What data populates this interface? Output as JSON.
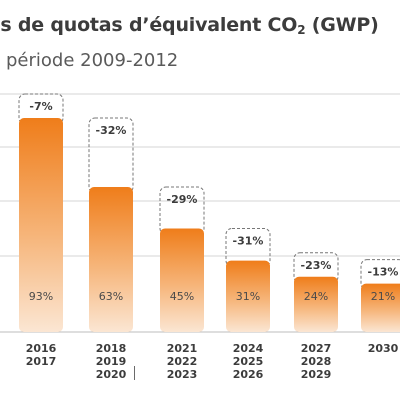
{
  "title_text": "ls de quotas d’équivalent CO",
  "title_sub": "2",
  "title_suffix": " (GWP)",
  "subtitle": "période 2009-2012",
  "colors": {
    "bar_top": "#ef7d1a",
    "bar_bottom": "#fbe6d3",
    "grid": "#d4d4d4",
    "text": "#3c3c3c",
    "badge_border": "#777777"
  },
  "chart_data": {
    "type": "bar",
    "title": "ls de quotas d’équivalent CO2 (GWP)",
    "subtitle": "période 2009-2012",
    "categories": [
      [
        "2016",
        "2017"
      ],
      [
        "2018",
        "2019",
        "2020"
      ],
      [
        "2021",
        "2022",
        "2023"
      ],
      [
        "2024",
        "2025",
        "2026"
      ],
      [
        "2027",
        "2028",
        "2029"
      ],
      [
        "2030"
      ]
    ],
    "values": [
      93,
      63,
      45,
      31,
      24,
      21
    ],
    "value_labels": [
      "93%",
      "63%",
      "45%",
      "31%",
      "24%",
      "21%"
    ],
    "reductions": [
      "-7%",
      "-32%",
      "-29%",
      "-31%",
      "-23%",
      "-13%"
    ],
    "unit": "%",
    "ylim": [
      0,
      100
    ],
    "grid": true
  }
}
